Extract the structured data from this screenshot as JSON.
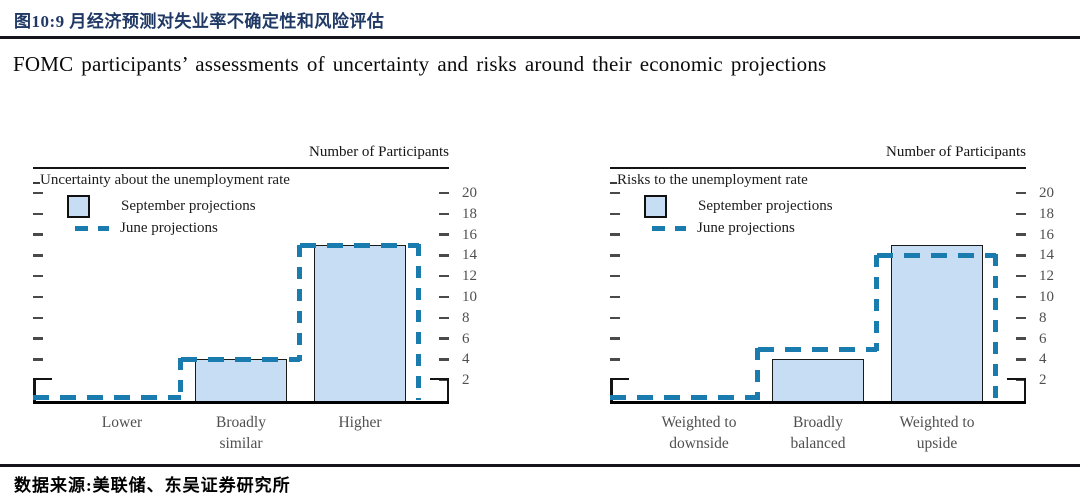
{
  "header": {
    "figure_label": "图10:9 月经济预测对失业率不确定性和风险评估",
    "subtitle": "FOMC participants’ assessments of uncertainty and risks around their economic projections"
  },
  "footer": {
    "source": "数据来源:美联储、东吴证券研究所"
  },
  "colors": {
    "title_navy": "#1f3864",
    "rule_dark": "#14141a",
    "bar_fill": "#c6ddf4",
    "bar_border": "#1a1a1a",
    "june_dash": "#1a7bae",
    "axis_text_gray": "#4f4f4f"
  },
  "chart_data": [
    {
      "type": "bar",
      "title": "Uncertainty about the unemployment rate",
      "ylabel": "Number of Participants",
      "categories": [
        "Lower",
        "Broadly similar",
        "Higher"
      ],
      "series": [
        {
          "name": "September projections",
          "style": "filled-bar",
          "values": [
            0,
            4,
            15
          ]
        },
        {
          "name": "June projections",
          "style": "dashed-step-outline",
          "values": [
            0,
            4,
            15
          ]
        }
      ],
      "ylim": [
        0,
        22
      ],
      "yticks": [
        2,
        4,
        6,
        8,
        10,
        12,
        14,
        16,
        18,
        20
      ],
      "legend_position": "top-left",
      "grid": false
    },
    {
      "type": "bar",
      "title": "Risks to the unemployment rate",
      "ylabel": "Number of Participants",
      "categories": [
        "Weighted to downside",
        "Broadly balanced",
        "Weighted to upside"
      ],
      "series": [
        {
          "name": "September projections",
          "style": "filled-bar",
          "values": [
            0,
            4,
            15
          ]
        },
        {
          "name": "June projections",
          "style": "dashed-step-outline",
          "values": [
            0,
            5,
            14
          ]
        }
      ],
      "ylim": [
        0,
        22
      ],
      "yticks": [
        2,
        4,
        6,
        8,
        10,
        12,
        14,
        16,
        18,
        20
      ],
      "legend_position": "top-left",
      "grid": false
    }
  ]
}
